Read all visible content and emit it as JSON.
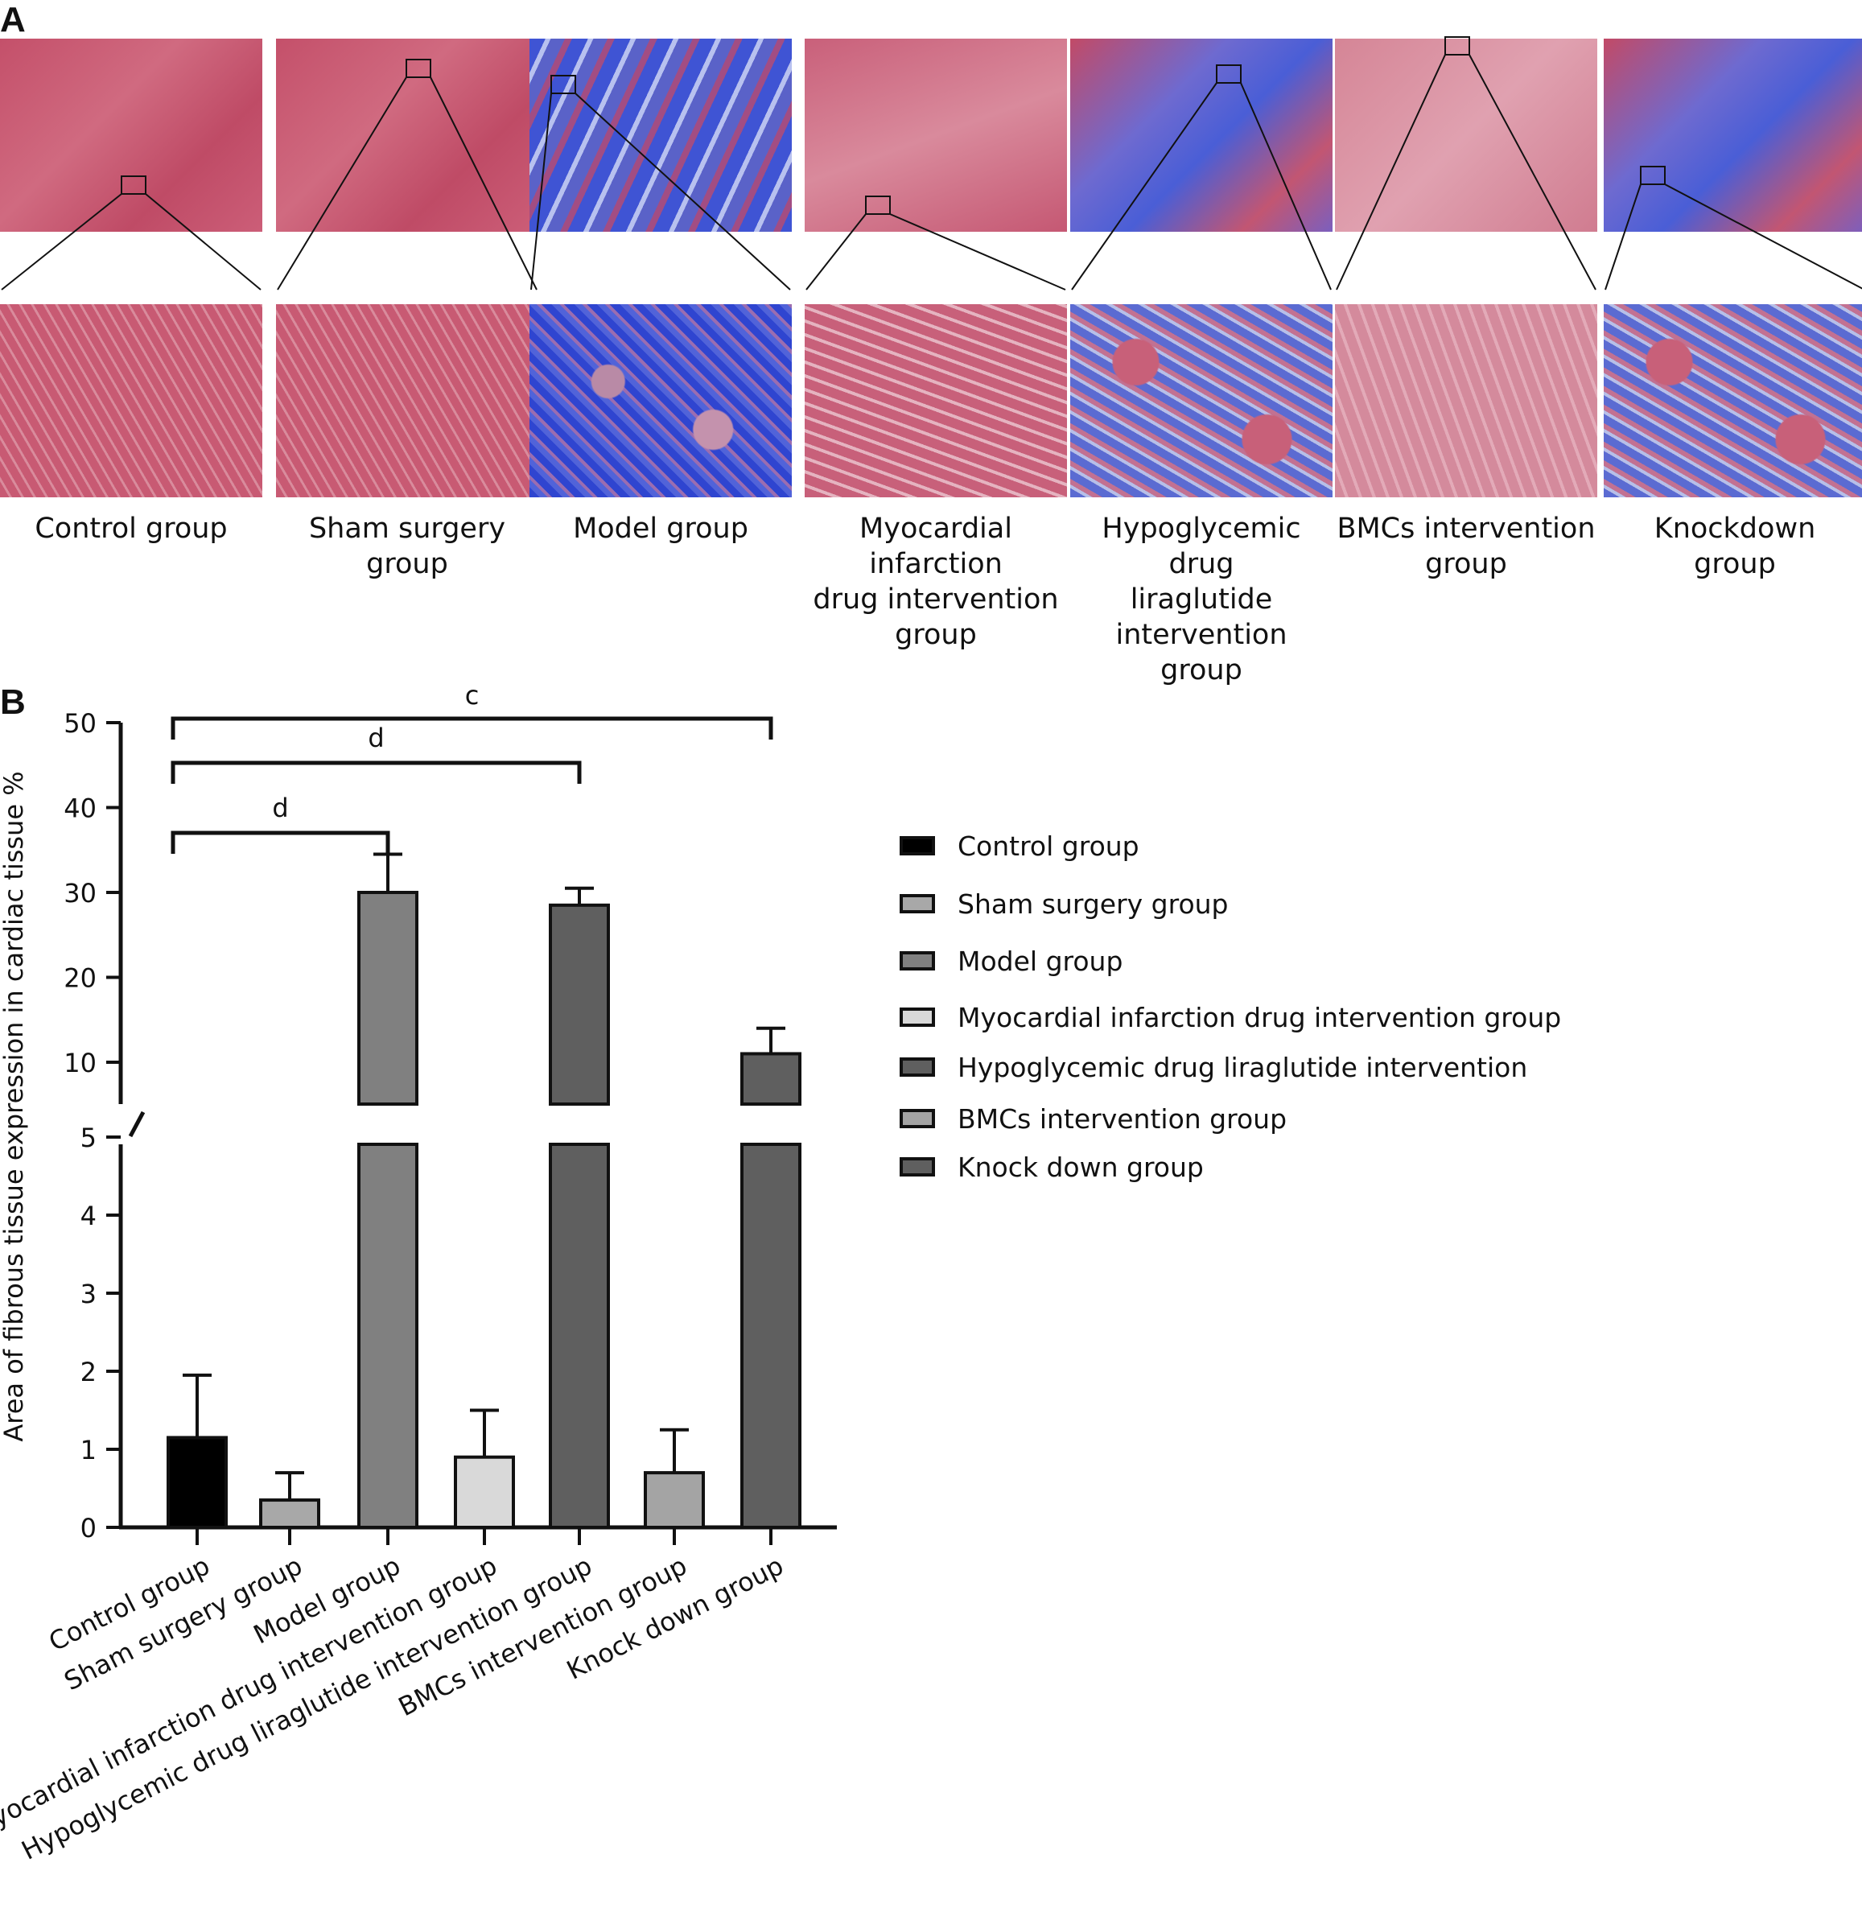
{
  "panel_a": {
    "letter": "A",
    "groups": [
      {
        "caption": "Control group",
        "stain": "red"
      },
      {
        "caption": "Sham surgery group",
        "stain": "red"
      },
      {
        "caption": "Model group",
        "stain": "blue-heavy"
      },
      {
        "caption": "Myocardial infarction\ndrug intervention\ngroup",
        "stain": "red-pink"
      },
      {
        "caption": "Hypoglycemic drug\nliraglutide intervention\ngroup",
        "stain": "blue-mixed"
      },
      {
        "caption": "BMCs intervention\ngroup",
        "stain": "pink"
      },
      {
        "caption": "Knockdown\ngroup",
        "stain": "blue-mixed"
      }
    ],
    "colors": {
      "muscle": "#c8566e",
      "collagen": "#4a5ed6",
      "pale": "#dca7b6"
    }
  },
  "panel_b": {
    "letter": "B"
  },
  "chart_data": {
    "type": "bar",
    "ylabel": "Area of fibrous tissue expression in cardiac tissue %",
    "broken_axis": true,
    "lower_segment": {
      "ylim": [
        0,
        5
      ],
      "ticks": [
        "0",
        "1",
        "2",
        "3",
        "4",
        "5"
      ]
    },
    "upper_segment": {
      "ylim": [
        10,
        50
      ],
      "ticks": [
        "10",
        "20",
        "30",
        "40",
        "50"
      ]
    },
    "categories": [
      "Control group",
      "Sham surgery group",
      "Model group",
      "Myocardial infarction drug intervention group",
      "Hypoglycemic drug liraglutide intervention group",
      "BMCs intervention group",
      "Knock down group"
    ],
    "values": [
      1.15,
      0.35,
      30,
      0.9,
      28.5,
      0.7,
      11
    ],
    "errors": [
      0.8,
      0.35,
      4.5,
      0.6,
      2,
      0.55,
      3
    ],
    "colors": [
      "#000000",
      "#a8a8a8",
      "#808080",
      "#d9d9d9",
      "#5f5f5f",
      "#a4a4a4",
      "#5f5f5f"
    ],
    "legend": {
      "placement": "right",
      "entries": [
        "Control group",
        "Sham surgery group",
        "Model group",
        "Myocardial infarction drug intervention group",
        "Hypoglycemic drug liraglutide intervention",
        "BMCs intervention group",
        "Knock down group"
      ]
    },
    "significance": [
      {
        "from": 0,
        "to": 2,
        "label": "d"
      },
      {
        "from": 0,
        "to": 4,
        "label": "d"
      },
      {
        "from": 0,
        "to": 6,
        "label": "c"
      }
    ]
  }
}
